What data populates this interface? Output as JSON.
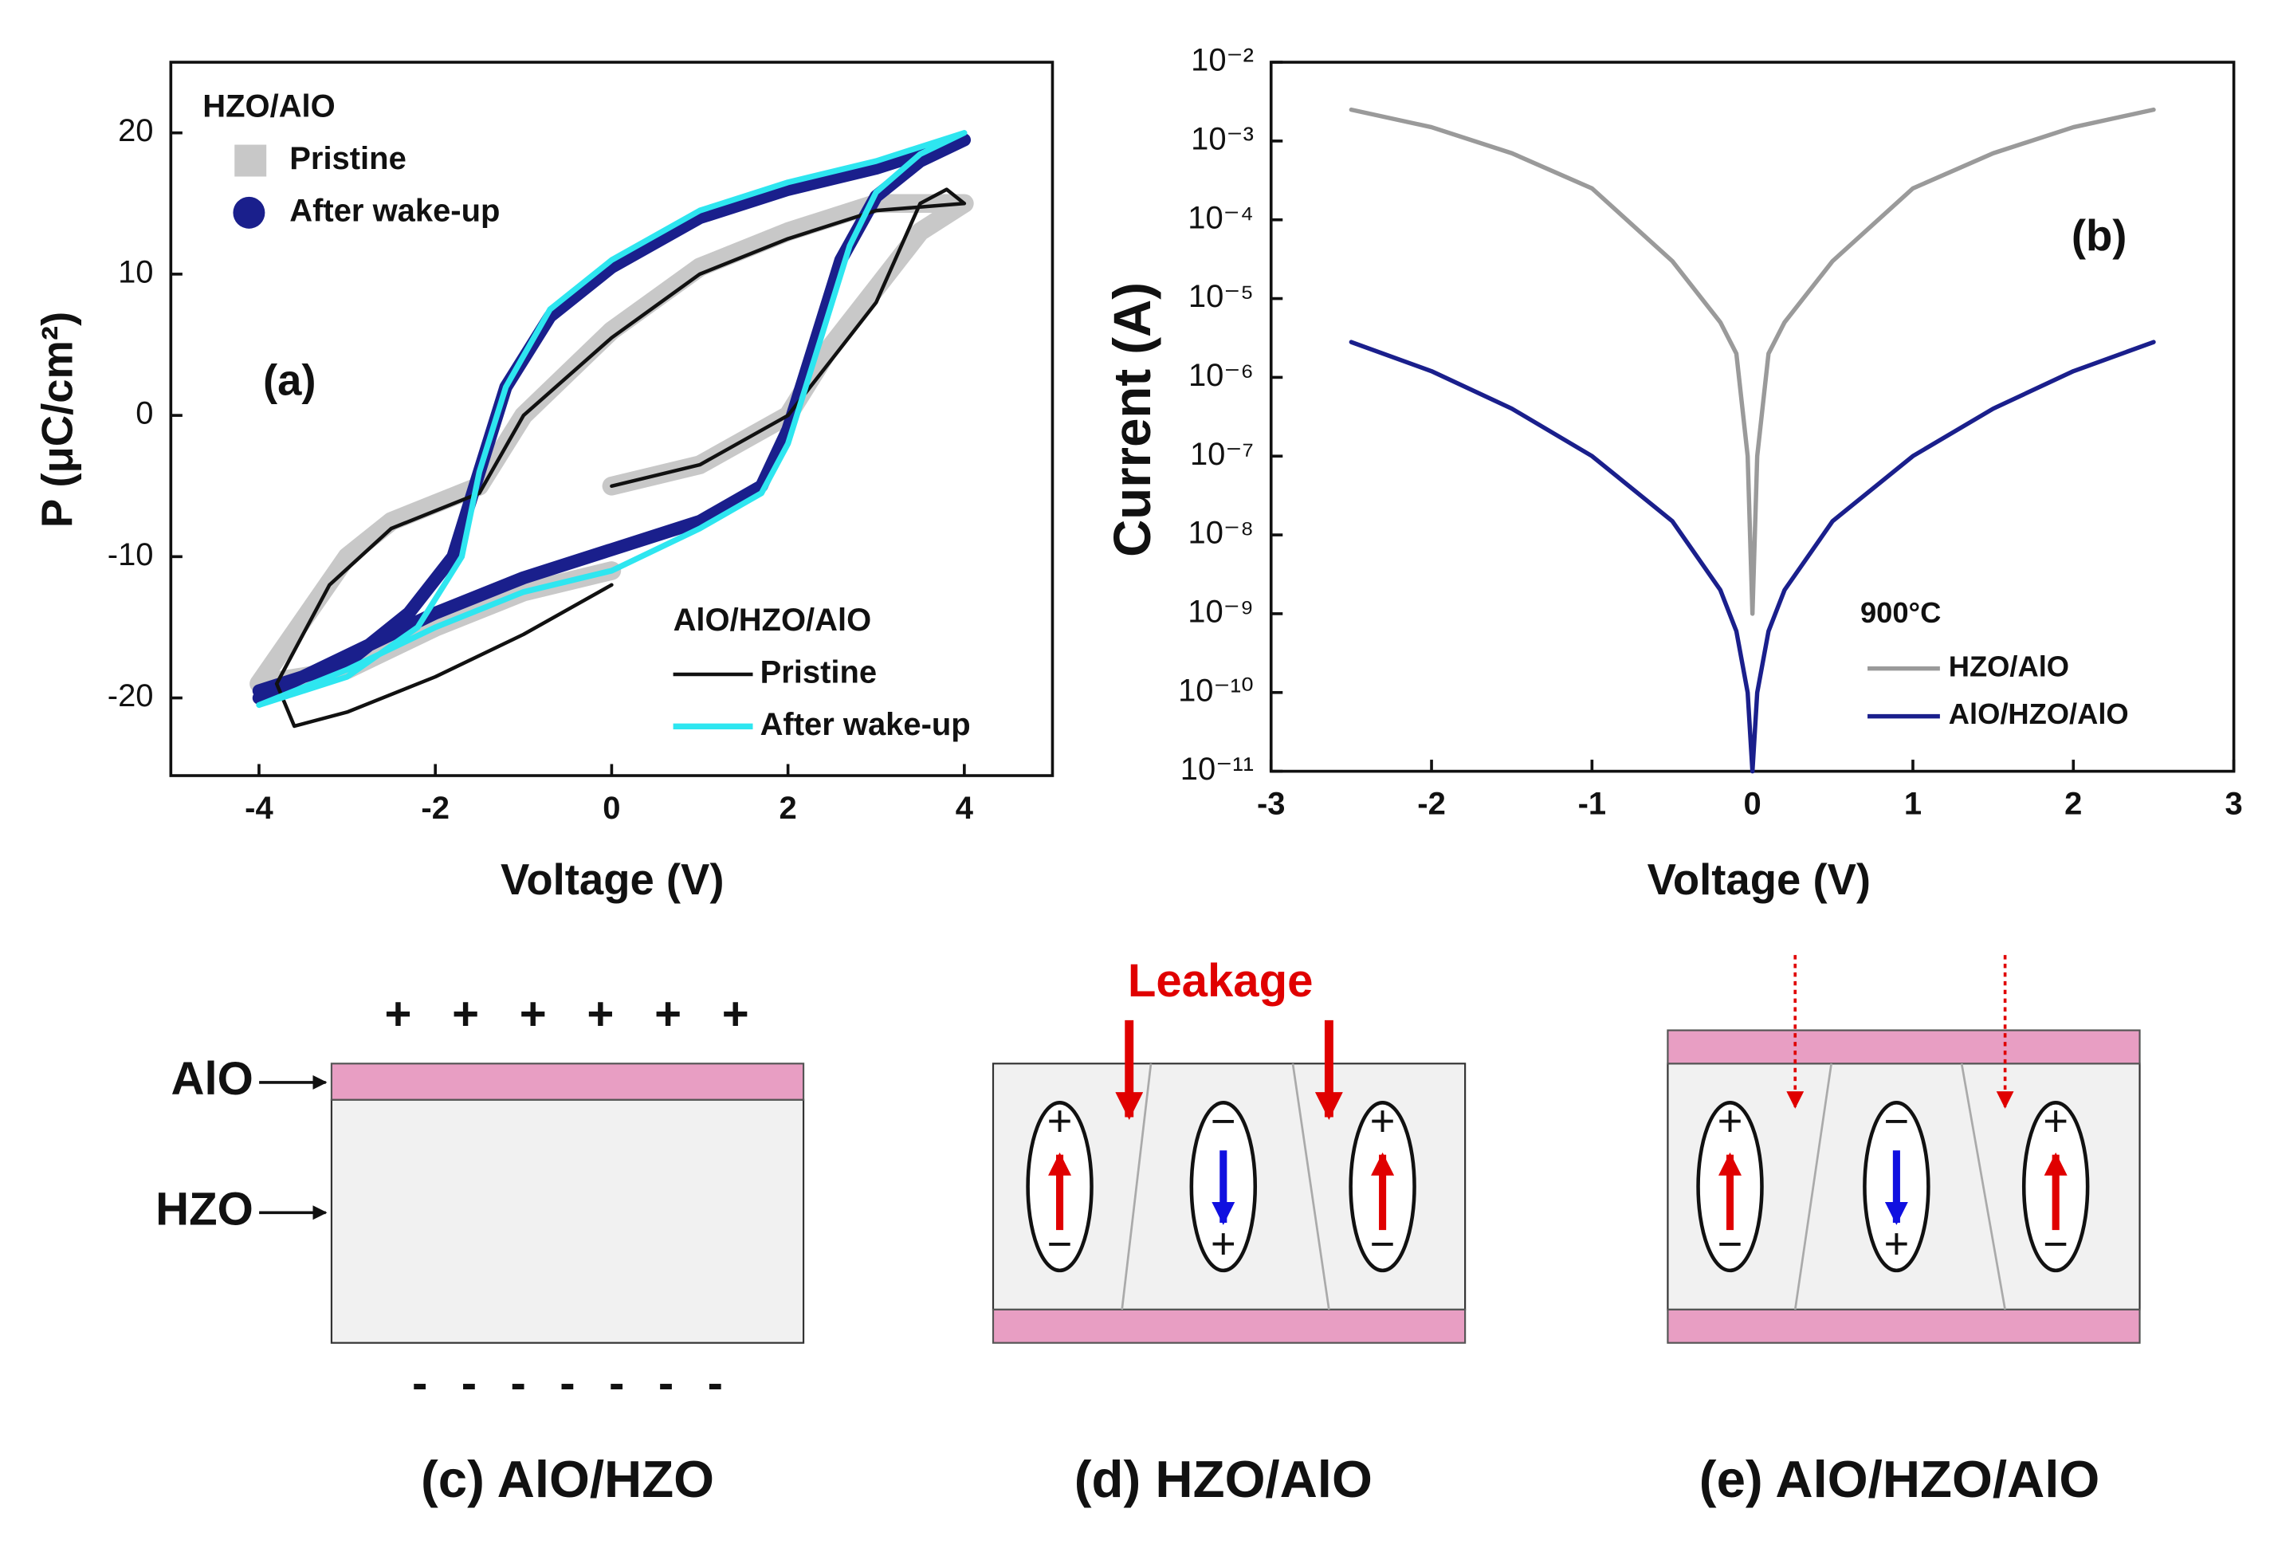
{
  "chart_data": [
    {
      "type": "line",
      "annotation": "(a)",
      "x_label": "Voltage (V)",
      "y_label": "P (μC/cm²)",
      "xlim": [
        -5,
        5
      ],
      "xticks": [
        -4,
        -2,
        0,
        2,
        4
      ],
      "ylim": [
        -25.5,
        25
      ],
      "yticks": [
        -20,
        -10,
        0,
        10,
        20
      ],
      "legend_groups": [
        {
          "title": "HZO/AlO",
          "series": [
            {
              "name": "Pristine",
              "color": "#c8c8c8",
              "style": "band",
              "marker": "square",
              "x": [
                0,
                1,
                2,
                2.5,
                3,
                3.5,
                4,
                3,
                2,
                1,
                0,
                -1,
                -1.5,
                -2.5,
                -3,
                -4,
                -3,
                -2,
                -1,
                0
              ],
              "y": [
                -5,
                -3.5,
                0,
                5,
                9,
                13,
                15,
                15,
                13,
                10.5,
                6,
                0,
                -5,
                -7.5,
                -10,
                -19,
                -18,
                -15,
                -12.5,
                -11
              ]
            },
            {
              "name": "After wake-up",
              "color": "#1a1f8c",
              "style": "bold",
              "marker": "circle",
              "x": [
                -4,
                -3,
                -2,
                -1,
                0,
                1,
                1.7,
                2,
                2.3,
                2.6,
                3,
                3.5,
                4,
                3,
                2,
                1,
                0,
                -0.7,
                -1.2,
                -1.5,
                -1.8,
                -2.3,
                -3,
                -4
              ],
              "y": [
                -20,
                -17,
                -14,
                -11.5,
                -9.5,
                -7.5,
                -5,
                -1,
                5,
                11,
                15.5,
                18,
                19.5,
                17.5,
                16,
                14,
                10.5,
                7,
                2,
                -4,
                -10,
                -14,
                -17.5,
                -19.5
              ]
            }
          ]
        },
        {
          "title": "AlO/HZO/AlO",
          "series": [
            {
              "name": "Pristine",
              "color": "#111111",
              "style": "thin",
              "marker": "line",
              "x": [
                0,
                1,
                2,
                2.5,
                3,
                3.5,
                3.8,
                4,
                3,
                2,
                1,
                0,
                -1,
                -1.5,
                -2.5,
                -3.2,
                -3.8,
                -3.6,
                -3,
                -2,
                -1,
                0
              ],
              "y": [
                -5,
                -3.5,
                0,
                4,
                8,
                15,
                16,
                15,
                14.5,
                12.5,
                10,
                5.5,
                0,
                -5.5,
                -8,
                -12,
                -19,
                -22,
                -21,
                -18.5,
                -15.5,
                -12
              ]
            },
            {
              "name": "After wake-up",
              "color": "#2ee6f0",
              "style": "medium",
              "marker": "line",
              "x": [
                -4,
                -3,
                -2,
                -1,
                0,
                1,
                1.7,
                2,
                2.3,
                2.7,
                3,
                3.5,
                4,
                3,
                2,
                1,
                0,
                -0.7,
                -1.2,
                -1.5,
                -1.7,
                -2.2,
                -3,
                -4
              ],
              "y": [
                -20.5,
                -18,
                -15,
                -12.5,
                -11,
                -8,
                -5.5,
                -2,
                4,
                12,
                15.8,
                18.5,
                20,
                18,
                16.5,
                14.5,
                11,
                7.5,
                2,
                -4,
                -10,
                -15,
                -18.5,
                -20.5
              ]
            }
          ]
        }
      ]
    },
    {
      "type": "line",
      "annotation": "(b)",
      "x_label": "Voltage (V)",
      "y_label": "Current (A)",
      "log_y": true,
      "xlim": [
        -3,
        3
      ],
      "xticks": [
        -3,
        -2,
        -1,
        0,
        1,
        2,
        3
      ],
      "ylim": [
        1e-11,
        0.01
      ],
      "yticks": [
        {
          "value": 0.01,
          "label": "10⁻²"
        },
        {
          "value": 0.001,
          "label": "10⁻³"
        },
        {
          "value": 0.0001,
          "label": "10⁻⁴"
        },
        {
          "value": 1e-05,
          "label": "10⁻⁵"
        },
        {
          "value": 1e-06,
          "label": "10⁻⁶"
        },
        {
          "value": 1e-07,
          "label": "10⁻⁷"
        },
        {
          "value": 1e-08,
          "label": "10⁻⁸"
        },
        {
          "value": 1e-09,
          "label": "10⁻⁹"
        },
        {
          "value": 1e-10,
          "label": "10⁻¹⁰"
        },
        {
          "value": 1e-11,
          "label": "10⁻¹¹"
        }
      ],
      "legend_title": "900°C",
      "x": [
        -2.5,
        -2,
        -1.5,
        -1,
        -0.5,
        -0.2,
        -0.1,
        -0.03,
        0,
        0.03,
        0.1,
        0.2,
        0.5,
        1,
        1.5,
        2,
        2.5
      ],
      "series": [
        {
          "name": "HZO/AlO",
          "color": "#9a9a9a",
          "values": [
            0.0025,
            0.0015,
            0.0007,
            0.00025,
            3e-05,
            5e-06,
            2e-06,
            1e-07,
            1e-09,
            1e-07,
            2e-06,
            5e-06,
            3e-05,
            0.00025,
            0.0007,
            0.0015,
            0.0025
          ]
        },
        {
          "name": "AlO/HZO/AlO",
          "color": "#1a1f8c",
          "values": [
            2.8e-06,
            1.2e-06,
            4e-07,
            1e-07,
            1.5e-08,
            2e-09,
            6e-10,
            1e-10,
            1e-11,
            1e-10,
            6e-10,
            2e-09,
            1.5e-08,
            1e-07,
            4e-07,
            1.2e-06,
            2.8e-06
          ]
        }
      ]
    }
  ],
  "diagrams": [
    {
      "caption": "(c) AlO/HZO",
      "layer_labels": [
        "AlO",
        "HZO"
      ],
      "top_charges": [
        "+",
        "+",
        "+",
        "+",
        "+",
        "+"
      ],
      "bottom_charges": [
        "-",
        "-",
        "-",
        "-",
        "-",
        "-",
        "-"
      ]
    },
    {
      "caption": "(d) HZO/AlO",
      "annotation": "Leakage",
      "domains": [
        {
          "top": "+",
          "bottom": "−"
        },
        {
          "top": "−",
          "bottom": "+"
        },
        {
          "top": "+",
          "bottom": "−"
        }
      ]
    },
    {
      "caption": "(e) AlO/HZO/AlO",
      "domains": [
        {
          "top": "+",
          "bottom": "−"
        },
        {
          "top": "−",
          "bottom": "+"
        },
        {
          "top": "+",
          "bottom": "−"
        }
      ]
    }
  ]
}
